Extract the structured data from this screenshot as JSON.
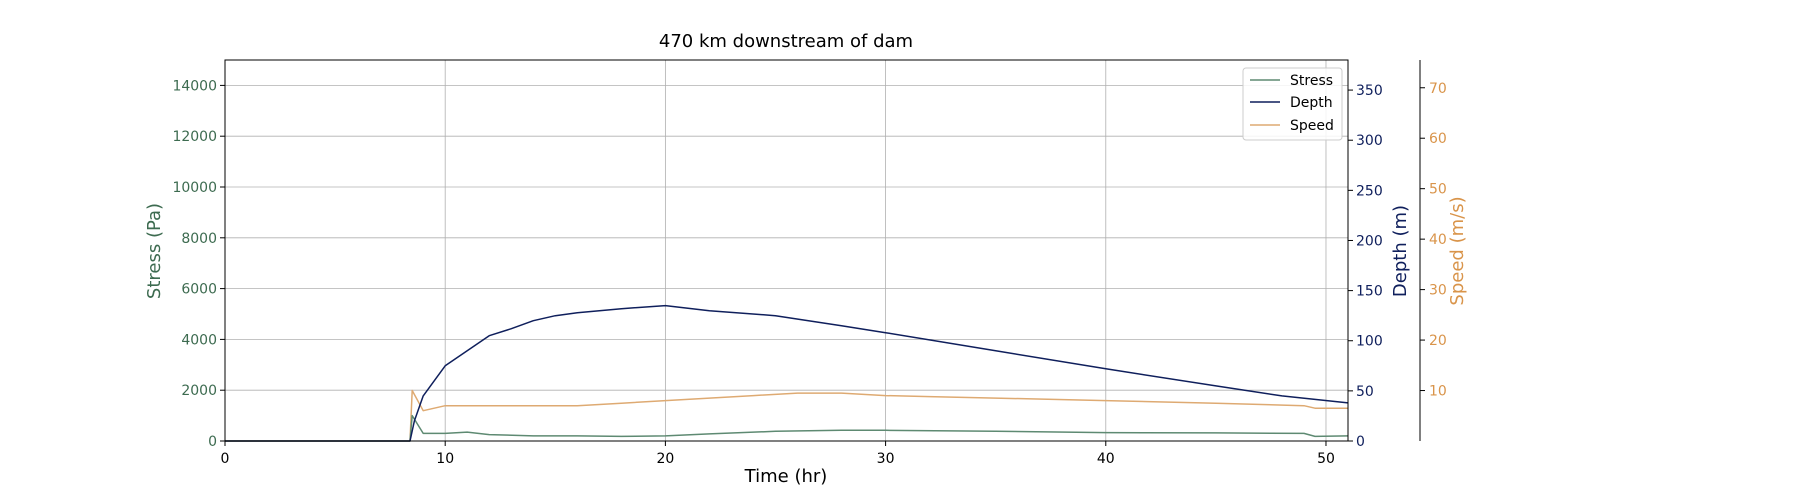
{
  "chart_data": {
    "type": "line",
    "title": "470 km downstream of dam",
    "xlabel": "Time (hr)",
    "xlim": [
      0,
      51
    ],
    "xticks": [
      0,
      10,
      20,
      30,
      40,
      50
    ],
    "grid": true,
    "legend_position": "top-right",
    "axes": {
      "stress": {
        "label": "Stress (Pa)",
        "color": "#3d6b50",
        "ylim": [
          0,
          15000
        ],
        "ticks": [
          0,
          2000,
          4000,
          6000,
          8000,
          10000,
          12000,
          14000
        ]
      },
      "depth": {
        "label": "Depth (m)",
        "color": "#0f1f5c",
        "ylim": [
          0,
          380
        ],
        "ticks": [
          0,
          50,
          100,
          150,
          200,
          250,
          300,
          350
        ]
      },
      "speed": {
        "label": "Speed (m/s)",
        "color": "#d9944a",
        "ylim": [
          0,
          75.5
        ],
        "ticks": [
          10,
          20,
          30,
          40,
          50,
          60,
          70
        ]
      }
    },
    "series": [
      {
        "name": "Stress",
        "axis": "stress",
        "color": "#5e8a72",
        "x": [
          0,
          8.4,
          8.5,
          9,
          10,
          11,
          12,
          14,
          16,
          18,
          20,
          22,
          25,
          28,
          30,
          35,
          40,
          45,
          49,
          49.5,
          51
        ],
        "y": [
          0,
          0,
          1000,
          300,
          300,
          350,
          250,
          200,
          200,
          180,
          200,
          280,
          380,
          420,
          420,
          380,
          330,
          320,
          300,
          180,
          200
        ]
      },
      {
        "name": "Depth",
        "axis": "depth",
        "color": "#0f1f5c",
        "x": [
          0,
          8.4,
          8.6,
          9,
          10,
          11,
          12,
          13,
          14,
          15,
          16,
          18,
          20,
          22,
          25,
          28,
          30,
          35,
          40,
          45,
          48,
          51
        ],
        "y": [
          0,
          0,
          20,
          45,
          75,
          90,
          105,
          112,
          120,
          125,
          128,
          132,
          135,
          130,
          125,
          115,
          108,
          90,
          72,
          55,
          45,
          38
        ]
      },
      {
        "name": "Speed",
        "axis": "speed",
        "color": "#deaa72",
        "x": [
          0,
          8.4,
          8.5,
          9,
          10,
          12,
          14,
          16,
          18,
          20,
          22,
          24,
          26,
          28,
          30,
          32,
          35,
          40,
          45,
          49,
          49.5,
          51
        ],
        "y": [
          0,
          0,
          10,
          6,
          7,
          7,
          7,
          7,
          7.5,
          8,
          8.5,
          9,
          9.5,
          9.5,
          9,
          8.8,
          8.5,
          8,
          7.5,
          7,
          6.5,
          6.5
        ]
      }
    ]
  }
}
